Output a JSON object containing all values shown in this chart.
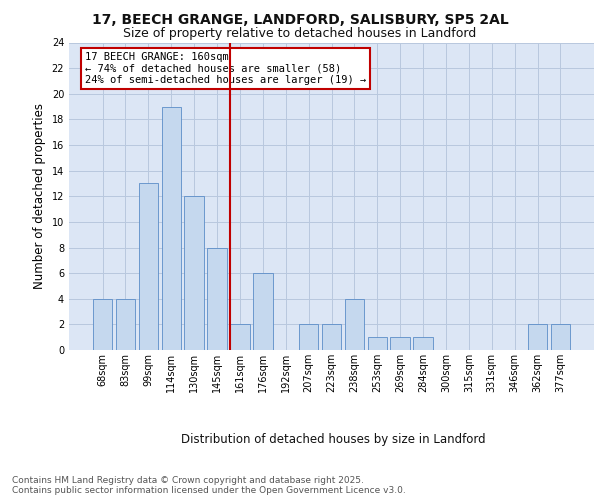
{
  "title_line1": "17, BEECH GRANGE, LANDFORD, SALISBURY, SP5 2AL",
  "title_line2": "Size of property relative to detached houses in Landford",
  "xlabel": "Distribution of detached houses by size in Landford",
  "ylabel": "Number of detached properties",
  "categories": [
    "68sqm",
    "83sqm",
    "99sqm",
    "114sqm",
    "130sqm",
    "145sqm",
    "161sqm",
    "176sqm",
    "192sqm",
    "207sqm",
    "223sqm",
    "238sqm",
    "253sqm",
    "269sqm",
    "284sqm",
    "300sqm",
    "315sqm",
    "331sqm",
    "346sqm",
    "362sqm",
    "377sqm"
  ],
  "values": [
    4,
    4,
    13,
    19,
    12,
    8,
    2,
    6,
    0,
    2,
    2,
    4,
    1,
    1,
    1,
    0,
    0,
    0,
    0,
    2,
    2
  ],
  "bar_color": "#c5d8ee",
  "bar_edgecolor": "#5b8dc8",
  "vline_color": "#c00000",
  "annotation_text": "17 BEECH GRANGE: 160sqm\n← 74% of detached houses are smaller (58)\n24% of semi-detached houses are larger (19) →",
  "annotation_box_color": "#ffffff",
  "annotation_box_edgecolor": "#c00000",
  "ylim": [
    0,
    24
  ],
  "yticks": [
    0,
    2,
    4,
    6,
    8,
    10,
    12,
    14,
    16,
    18,
    20,
    22,
    24
  ],
  "footer_text": "Contains HM Land Registry data © Crown copyright and database right 2025.\nContains public sector information licensed under the Open Government Licence v3.0.",
  "plot_bg_color": "#dce6f5",
  "title_fontsize": 10,
  "subtitle_fontsize": 9,
  "axis_label_fontsize": 8.5,
  "tick_fontsize": 7,
  "annotation_fontsize": 7.5,
  "footer_fontsize": 6.5,
  "vline_bar_index": 6
}
